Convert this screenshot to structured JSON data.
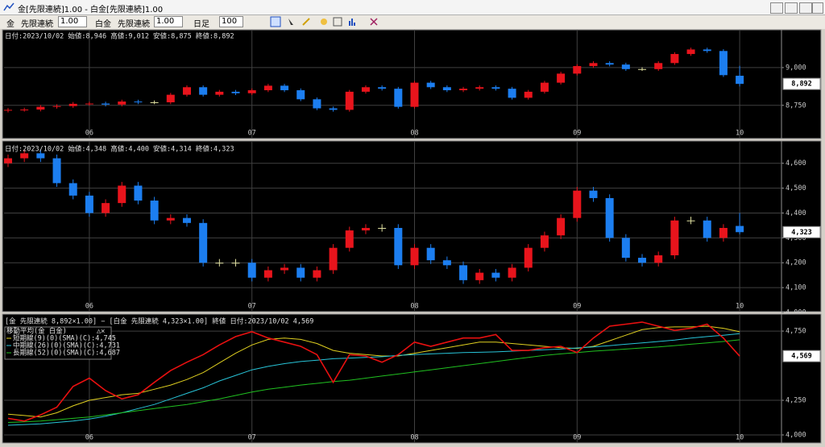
{
  "window": {
    "title": "金[先限連続]1.00 - 白金[先限連続]1.00"
  },
  "toolbar": {
    "symbol1": "金",
    "contract1": "先限連続",
    "mult1": "1.00",
    "symbol2": "白金",
    "contract2": "先限連続",
    "mult2": "1.00",
    "period": "日足",
    "count": "100"
  },
  "categories": [
    null,
    null,
    null,
    null,
    null,
    "06",
    null,
    null,
    null,
    null,
    null,
    null,
    null,
    null,
    null,
    "07",
    null,
    null,
    null,
    null,
    null,
    null,
    null,
    null,
    null,
    "08",
    null,
    null,
    null,
    null,
    null,
    null,
    null,
    null,
    null,
    "09",
    null,
    null,
    null,
    null,
    null,
    null,
    null,
    null,
    null,
    "10"
  ],
  "panels": [
    {
      "type": "candlestick",
      "header": "日付:2023/10/02 始値:8,946 高値:9,012 安値:8,875 終値:8,892",
      "ylim": [
        8610,
        9245
      ],
      "yticks": [
        {
          "value": 8750,
          "label": "8,750"
        },
        {
          "value": 9000,
          "label": "9,000"
        }
      ],
      "up_color": "#e8141c",
      "down_color": "#1c7ef0",
      "candles": {
        "open": [
          8715,
          8720,
          8722,
          8740,
          8745,
          8760,
          8762,
          8755,
          8775,
          8770,
          8770,
          8820,
          8870,
          8820,
          8840,
          8830,
          8850,
          8880,
          8850,
          8790,
          8730,
          8720,
          8840,
          8870,
          8860,
          8740,
          8900,
          8870,
          8850,
          8860,
          8870,
          8860,
          8800,
          8840,
          8900,
          8960,
          9010,
          9030,
          9020,
          8990,
          8990,
          9030,
          9090,
          9120,
          9110,
          8946
        ],
        "high": [
          8732,
          8734,
          8752,
          8757,
          8772,
          8774,
          8774,
          8787,
          8787,
          8782,
          8832,
          8882,
          8882,
          8852,
          8852,
          8862,
          8892,
          8892,
          8862,
          8802,
          8742,
          8852,
          8882,
          8882,
          8872,
          8912,
          8912,
          8882,
          8872,
          8882,
          8882,
          8872,
          8852,
          8912,
          8972,
          9022,
          9042,
          9042,
          9032,
          9002,
          9042,
          9102,
          9132,
          9132,
          9122,
          9012
        ],
        "low": [
          8703,
          8708,
          8710,
          8728,
          8733,
          8748,
          8743,
          8743,
          8758,
          8758,
          8758,
          8808,
          8808,
          8808,
          8818,
          8818,
          8838,
          8838,
          8778,
          8718,
          8708,
          8708,
          8828,
          8848,
          8728,
          8728,
          8858,
          8838,
          8838,
          8848,
          8848,
          8788,
          8788,
          8828,
          8888,
          8948,
          8998,
          9008,
          8978,
          8978,
          8978,
          9018,
          9078,
          9098,
          8938,
          8875
        ],
        "close": [
          8720,
          8722,
          8740,
          8745,
          8760,
          8762,
          8755,
          8775,
          8770,
          8770,
          8820,
          8870,
          8820,
          8840,
          8830,
          8850,
          8880,
          8850,
          8790,
          8730,
          8720,
          8840,
          8870,
          8860,
          8740,
          8900,
          8870,
          8850,
          8860,
          8870,
          8860,
          8800,
          8840,
          8900,
          8960,
          9010,
          9030,
          9020,
          8990,
          8990,
          9030,
          9090,
          9120,
          9110,
          8950,
          8892
        ]
      },
      "price_tag": {
        "value": 8892,
        "label": "8,892"
      }
    },
    {
      "type": "candlestick",
      "header": "日付:2023/10/02 始値:4,348 高値:4,400 安値:4,314 終値:4,323",
      "ylim": [
        4000,
        4680
      ],
      "yticks": [
        {
          "value": 4000,
          "label": "4,000"
        },
        {
          "value": 4100,
          "label": "4,100"
        },
        {
          "value": 4200,
          "label": "4,200"
        },
        {
          "value": 4300,
          "label": "4,300"
        },
        {
          "value": 4400,
          "label": "4,400"
        },
        {
          "value": 4500,
          "label": "4,500"
        },
        {
          "value": 4600,
          "label": "4,600"
        }
      ],
      "up_color": "#e8141c",
      "down_color": "#1c7ef0",
      "candles": {
        "open": [
          4600,
          4620,
          4640,
          4620,
          4520,
          4470,
          4400,
          4440,
          4510,
          4450,
          4370,
          4380,
          4360,
          4200,
          4200,
          4200,
          4140,
          4170,
          4180,
          4140,
          4170,
          4260,
          4330,
          4340,
          4340,
          4190,
          4260,
          4210,
          4190,
          4130,
          4160,
          4140,
          4180,
          4260,
          4310,
          4380,
          4490,
          4460,
          4300,
          4220,
          4200,
          4230,
          4370,
          4370,
          4300,
          4348
        ],
        "high": [
          4635,
          4655,
          4655,
          4635,
          4535,
          4485,
          4455,
          4525,
          4525,
          4465,
          4395,
          4395,
          4375,
          4215,
          4215,
          4215,
          4185,
          4195,
          4195,
          4185,
          4275,
          4345,
          4355,
          4355,
          4355,
          4275,
          4275,
          4225,
          4205,
          4175,
          4175,
          4195,
          4275,
          4325,
          4395,
          4505,
          4505,
          4475,
          4315,
          4235,
          4245,
          4385,
          4385,
          4385,
          4355,
          4400
        ],
        "low": [
          4585,
          4605,
          4605,
          4505,
          4455,
          4385,
          4385,
          4425,
          4435,
          4355,
          4355,
          4345,
          4185,
          4185,
          4185,
          4125,
          4125,
          4155,
          4125,
          4125,
          4155,
          4245,
          4315,
          4325,
          4175,
          4175,
          4195,
          4175,
          4115,
          4115,
          4125,
          4125,
          4165,
          4245,
          4295,
          4365,
          4445,
          4285,
          4205,
          4185,
          4185,
          4215,
          4355,
          4285,
          4285,
          4314
        ],
        "close": [
          4620,
          4640,
          4620,
          4520,
          4470,
          4400,
          4440,
          4510,
          4450,
          4370,
          4380,
          4360,
          4200,
          4200,
          4200,
          4140,
          4170,
          4180,
          4140,
          4170,
          4260,
          4330,
          4340,
          4340,
          4190,
          4260,
          4210,
          4190,
          4130,
          4160,
          4140,
          4180,
          4260,
          4310,
          4380,
          4490,
          4460,
          4300,
          4220,
          4200,
          4230,
          4370,
          4370,
          4300,
          4340,
          4323
        ]
      },
      "price_tag": {
        "value": 4323,
        "label": "4,323"
      }
    },
    {
      "type": "line",
      "header": "[金 先限連続 8,892×1.00] − [白金 先限連続 4,323×1.00] 終値 日付:2023/10/02 4,569",
      "legend_title": "移動平均(金 白金)",
      "legend_icons": "△✕",
      "ylim": [
        4000,
        4826
      ],
      "yticks": [
        {
          "value": 4000,
          "label": "4,000"
        },
        {
          "value": 4250,
          "label": "4,250"
        },
        {
          "value": 4750,
          "label": "4,750"
        }
      ],
      "spread": {
        "color": "#e81010",
        "values": [
          4120,
          4100,
          4145,
          4200,
          4350,
          4410,
          4320,
          4260,
          4290,
          4380,
          4465,
          4525,
          4580,
          4650,
          4710,
          4745,
          4700,
          4670,
          4640,
          4580,
          4380,
          4580,
          4570,
          4525,
          4580,
          4670,
          4640,
          4670,
          4700,
          4700,
          4725,
          4610,
          4610,
          4630,
          4640,
          4595,
          4700,
          4785,
          4800,
          4815,
          4785,
          4755,
          4770,
          4800,
          4700,
          4569
        ]
      },
      "series": [
        {
          "name": "短期線(9)(0)(SMA)(C):4,745",
          "color": "#e0d020",
          "values": [
            4150,
            4140,
            4130,
            4160,
            4210,
            4250,
            4270,
            4290,
            4300,
            4330,
            4360,
            4400,
            4450,
            4520,
            4590,
            4650,
            4690,
            4700,
            4690,
            4660,
            4610,
            4590,
            4580,
            4570,
            4570,
            4590,
            4610,
            4630,
            4650,
            4670,
            4670,
            4660,
            4650,
            4640,
            4630,
            4625,
            4640,
            4680,
            4720,
            4760,
            4775,
            4780,
            4780,
            4785,
            4770,
            4745
          ]
        },
        {
          "name": "中期線(26)(0)(SMA)(C):4,731",
          "color": "#28c4d8",
          "values": [
            4070,
            4075,
            4080,
            4090,
            4100,
            4115,
            4135,
            4160,
            4190,
            4220,
            4260,
            4300,
            4340,
            4390,
            4430,
            4470,
            4495,
            4515,
            4530,
            4540,
            4550,
            4555,
            4560,
            4565,
            4575,
            4580,
            4585,
            4590,
            4595,
            4597,
            4600,
            4605,
            4610,
            4615,
            4620,
            4628,
            4635,
            4645,
            4655,
            4665,
            4675,
            4685,
            4700,
            4710,
            4720,
            4731
          ]
        },
        {
          "name": "長期線(52)(0)(SMA)(C):4,687",
          "color": "#20c020",
          "values": [
            4090,
            4095,
            4100,
            4110,
            4120,
            4130,
            4145,
            4160,
            4175,
            4190,
            4205,
            4220,
            4240,
            4260,
            4285,
            4310,
            4330,
            4345,
            4360,
            4372,
            4385,
            4395,
            4410,
            4425,
            4440,
            4455,
            4470,
            4485,
            4500,
            4515,
            4530,
            4545,
            4560,
            4575,
            4585,
            4595,
            4605,
            4612,
            4620,
            4628,
            4635,
            4645,
            4655,
            4665,
            4675,
            4687
          ]
        }
      ],
      "price_tag": {
        "value": 4569,
        "label": "4,569"
      }
    }
  ]
}
